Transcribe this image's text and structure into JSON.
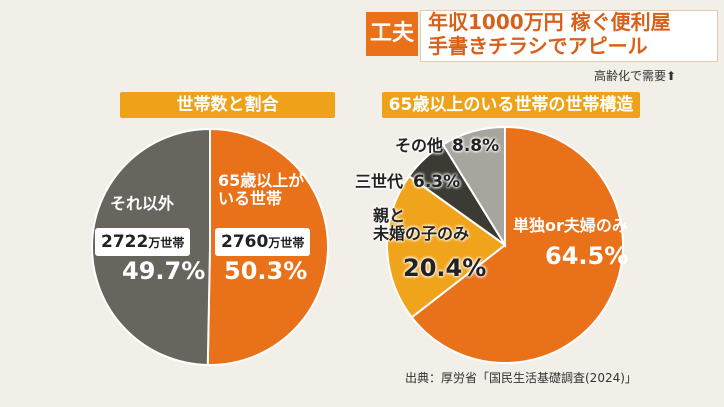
{
  "header": {
    "tag": "工夫",
    "title_line1": "年収1000万円 稼ぐ便利屋",
    "title_line2": "手書きチラシでアピール",
    "subtitle": "高齢化で需要⬆"
  },
  "chart_data": [
    {
      "type": "pie",
      "title": "世帯数と割合",
      "categories": [
        "65歳以上が\nいる世帯",
        "それ以外"
      ],
      "values": [
        50.3,
        49.7
      ],
      "value_labels": [
        "50.3%",
        "49.7%"
      ],
      "counts": [
        2760,
        2722
      ],
      "count_unit": "万世帯",
      "colors": [
        "#e8711a",
        "#67655e"
      ]
    },
    {
      "type": "pie",
      "title": "65歳以上のいる世帯の世帯構造",
      "categories": [
        "単独or夫婦のみ",
        "親と\n未婚の子のみ",
        "三世代",
        "その他"
      ],
      "values": [
        64.5,
        20.4,
        6.3,
        8.8
      ],
      "value_labels": [
        "64.5%",
        "20.4%",
        "6.3%",
        "8.8%"
      ],
      "colors": [
        "#e8711a",
        "#f0a41c",
        "#3b3a33",
        "#a8a49e"
      ]
    }
  ],
  "source": "出典：厚労省「国民生活基礎調査(2024)」"
}
